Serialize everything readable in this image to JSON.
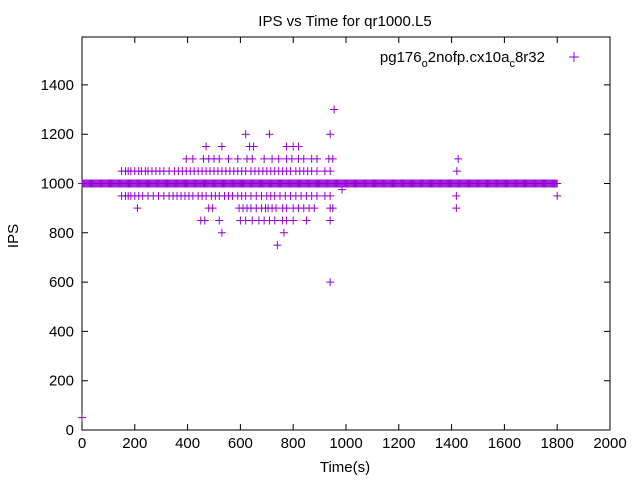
{
  "chart_data": {
    "type": "scatter",
    "title": "IPS vs Time for qr1000.L5",
    "xlabel": "Time(s)",
    "ylabel": "IPS",
    "xlim": [
      0,
      2000
    ],
    "ylim": [
      0,
      1550
    ],
    "xticks": [
      "0",
      "200",
      "400",
      "600",
      "800",
      "1000",
      "1200",
      "1400",
      "1600",
      "1800",
      "2000"
    ],
    "yticks": [
      "0",
      "200",
      "400",
      "600",
      "800",
      "1000",
      "1200",
      "1400"
    ],
    "grid": false,
    "legend_position": "top-right",
    "series": [
      {
        "name": "pg176_o2nofp.cx10a_c8r32",
        "legend_main": "pg176",
        "legend_sub1": "o",
        "legend_mid": "2nofp.cx10a",
        "legend_sub2": "c",
        "legend_end": "8r32",
        "color": "#9400d3",
        "marker": "plus",
        "dense_band": {
          "y": 1000,
          "x_range": [
            0,
            1800
          ],
          "x_step": 4
        },
        "levels": [
          {
            "y": 1050,
            "x": [
              150,
              165,
              175,
              185,
              200,
              215,
              225,
              240,
              250,
              265,
              280,
              295,
              310,
              330,
              350,
              365,
              380,
              395,
              410,
              425,
              440,
              455,
              470,
              485,
              500,
              515,
              530,
              545,
              560,
              575,
              590,
              605,
              620,
              640,
              655,
              670,
              685,
              700,
              715,
              730,
              745,
              760,
              775,
              790,
              810,
              825,
              840,
              855,
              870,
              890,
              920,
              940
            ]
          },
          {
            "y": 950,
            "x": [
              150,
              165,
              175,
              185,
              200,
              215,
              230,
              250,
              270,
              290,
              310,
              330,
              345,
              360,
              375,
              390,
              405,
              420,
              440,
              455,
              470,
              490,
              505,
              520,
              540,
              555,
              570,
              590,
              605,
              620,
              640,
              660,
              680,
              700,
              715,
              730,
              750,
              770,
              790,
              810,
              830,
              850,
              870,
              890,
              920,
              940,
              1418
            ]
          },
          {
            "y": 1100,
            "x": [
              395,
              420,
              460,
              480,
              500,
              520,
              555,
              590,
              625,
              645,
              690,
              720,
              745,
              775,
              795,
              820,
              840,
              870,
              890,
              935,
              950,
              1425
            ]
          },
          {
            "y": 900,
            "x": [
              210,
              480,
              495,
              595,
              610,
              625,
              640,
              660,
              680,
              695,
              705,
              720,
              735,
              760,
              775,
              800,
              820,
              840,
              860,
              880,
              940,
              950,
              1418
            ]
          },
          {
            "y": 850,
            "x": [
              450,
              465,
              520,
              600,
              620,
              645,
              670,
              690,
              710,
              730,
              760,
              775,
              800,
              850,
              940
            ]
          },
          {
            "y": 1150,
            "x": [
              470,
              530,
              635,
              650,
              775,
              800,
              820
            ]
          },
          {
            "y": 1200,
            "x": [
              620,
              710,
              940
            ]
          },
          {
            "y": 800,
            "x": [
              530,
              765
            ]
          },
          {
            "y": 750,
            "x": [
              740
            ]
          },
          {
            "y": 1300,
            "x": [
              955
            ]
          },
          {
            "y": 975,
            "x": [
              985
            ]
          },
          {
            "y": 1050,
            "x": [
              1420
            ]
          },
          {
            "y": 950,
            "x": [
              1800
            ]
          },
          {
            "y": 600,
            "x": [
              940
            ]
          },
          {
            "y": 50,
            "x": [
              0
            ]
          }
        ]
      }
    ]
  }
}
